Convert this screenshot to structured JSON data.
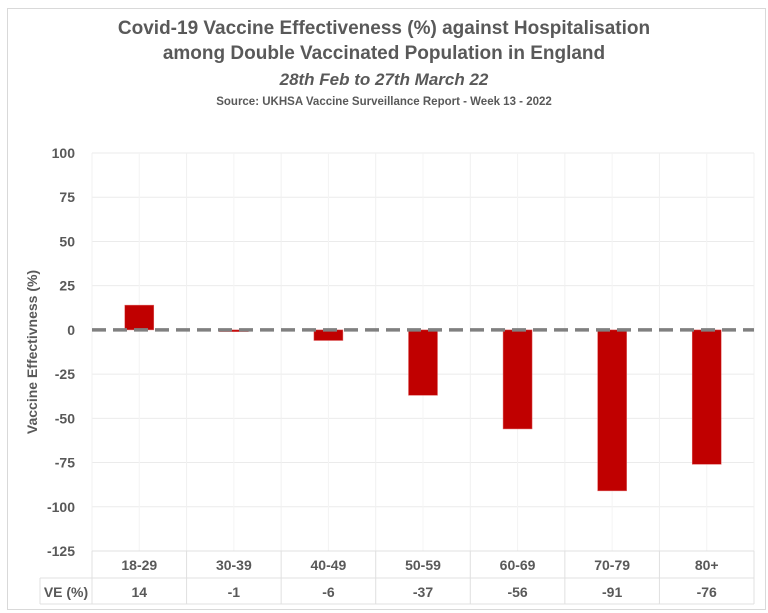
{
  "chart_data": {
    "type": "bar",
    "title": "Covid-19 Vaccine Effectiveness (%) against Hospitalisation",
    "title_line2": "among Double Vaccinated Population in England",
    "subtitle": "28th Feb to 27th March 22",
    "source": "Source: UKHSA Vaccine Surveillance Report - Week 13 - 2022",
    "xlabel": "",
    "ylabel": "Vaccine Effectivness (%)",
    "ylim": [
      -125,
      100
    ],
    "yticks": [
      100,
      75,
      50,
      25,
      0,
      -25,
      -50,
      -75,
      -100,
      -125
    ],
    "categories": [
      "18-29",
      "30-39",
      "40-49",
      "50-59",
      "60-69",
      "70-79",
      "80+"
    ],
    "series": [
      {
        "name": "VE (%)",
        "values": [
          14,
          -1,
          -6,
          -37,
          -56,
          -91,
          -76
        ],
        "color": "#c00000"
      }
    ],
    "data_table": {
      "row_label": "VE (%)",
      "values": [
        "14",
        "-1",
        "-6",
        "-37",
        "-56",
        "-91",
        "-76"
      ]
    },
    "reference_line": {
      "y": 0,
      "style": "dashed",
      "color": "#808080"
    },
    "grid": true,
    "legend": "none"
  }
}
